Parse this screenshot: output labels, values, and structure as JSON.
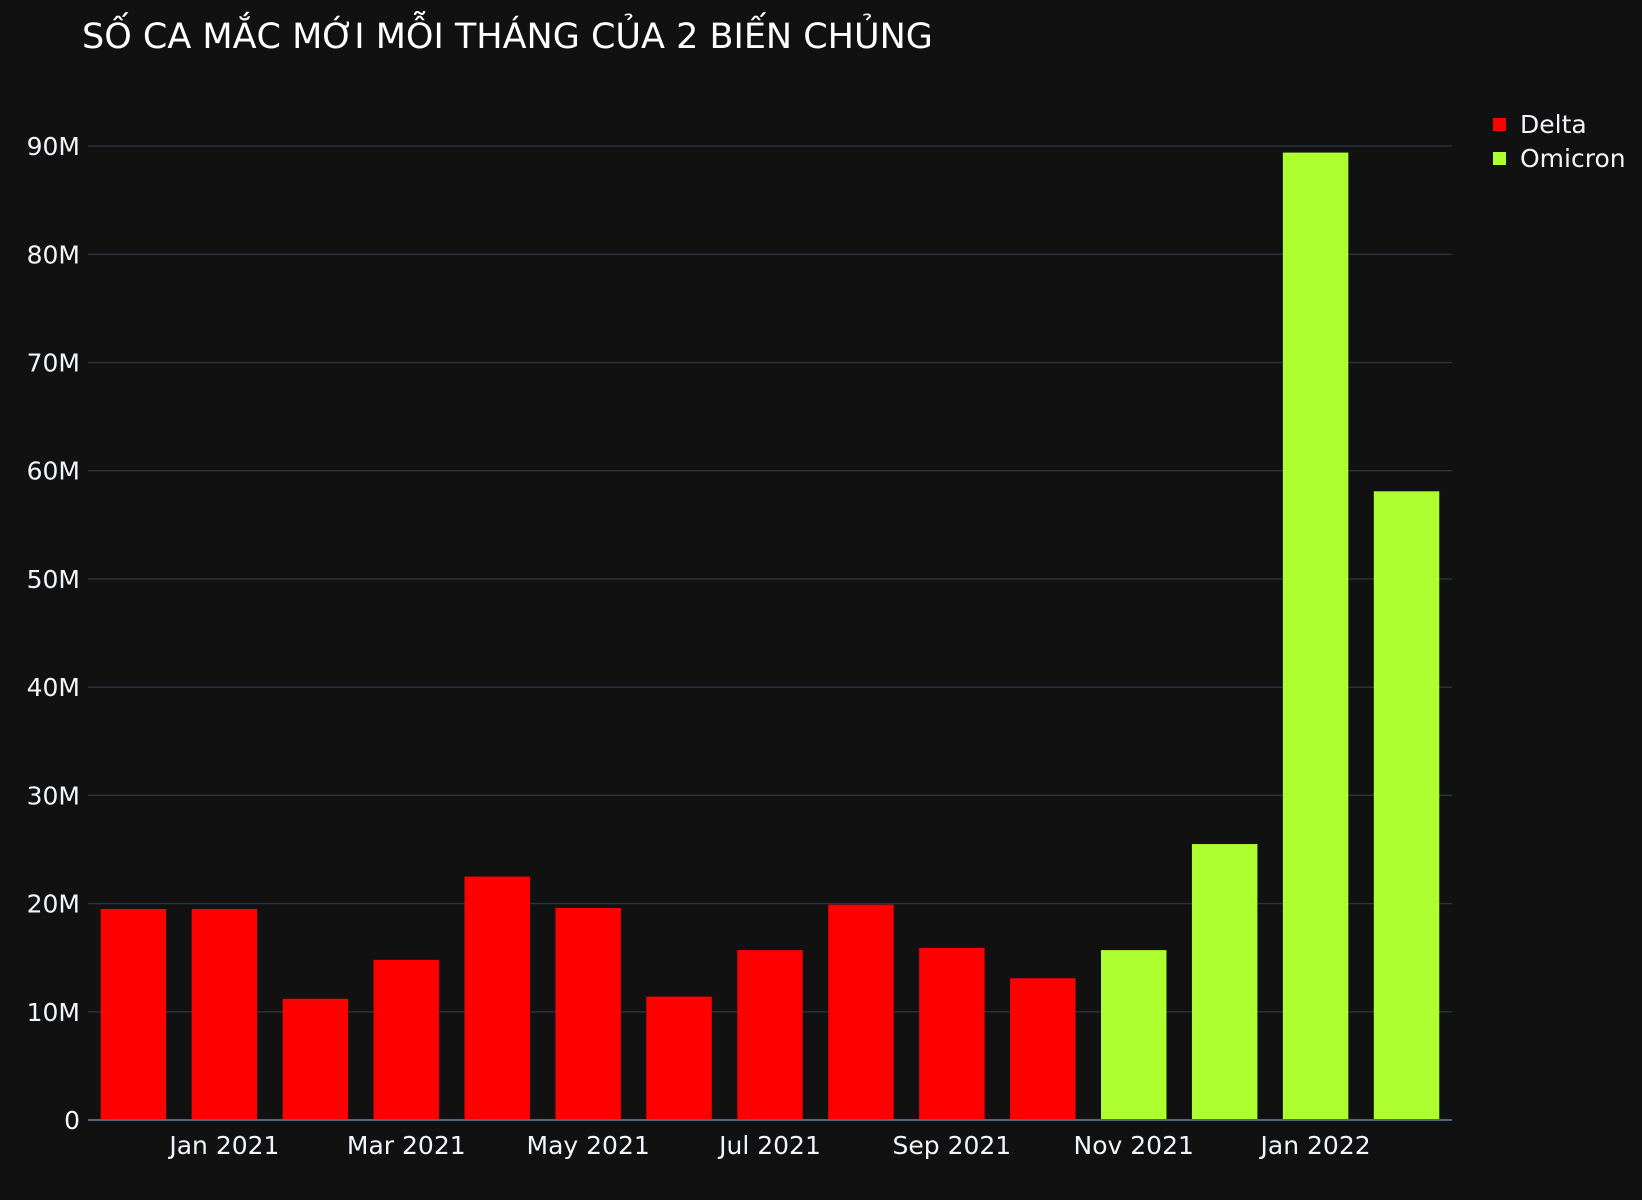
{
  "chart_data": {
    "type": "bar",
    "title": "SỐ CA MẮC MỚI MỖI THÁNG CỦA 2 BIẾN CHỦNG",
    "xlabel": "",
    "ylabel": "",
    "ylim": [
      0,
      95000000
    ],
    "y_ticks": [
      0,
      10000000,
      20000000,
      30000000,
      40000000,
      50000000,
      60000000,
      70000000,
      80000000,
      90000000
    ],
    "y_tick_labels": [
      "0",
      "10M",
      "20M",
      "30M",
      "40M",
      "50M",
      "60M",
      "70M",
      "80M",
      "90M"
    ],
    "x_tick_labels": [
      "Jan 2021",
      "Mar 2021",
      "May 2021",
      "Jul 2021",
      "Sep 2021",
      "Nov 2021",
      "Jan 2022"
    ],
    "categories": [
      "Dec 2020",
      "Jan 2021",
      "Feb 2021",
      "Mar 2021",
      "Apr 2021",
      "May 2021",
      "Jun 2021",
      "Jul 2021",
      "Aug 2021",
      "Sep 2021",
      "Oct 2021",
      "Nov 2021",
      "Dec 2021",
      "Jan 2022",
      "Feb 2022"
    ],
    "grid": true,
    "legend_position": "top-right",
    "series": [
      {
        "name": "Delta",
        "color": "#ff0000",
        "x": [
          "Dec 2020",
          "Jan 2021",
          "Feb 2021",
          "Mar 2021",
          "Apr 2021",
          "May 2021",
          "Jun 2021",
          "Jul 2021",
          "Aug 2021",
          "Sep 2021",
          "Oct 2021"
        ],
        "values": [
          19500000,
          19500000,
          11200000,
          14800000,
          22500000,
          19600000,
          11400000,
          15700000,
          19900000,
          15900000,
          13100000
        ]
      },
      {
        "name": "Omicron",
        "color": "#adff2f",
        "x": [
          "Nov 2021",
          "Dec 2021",
          "Jan 2022",
          "Feb 2022"
        ],
        "values": [
          15700000,
          25500000,
          89400000,
          58100000
        ]
      }
    ]
  }
}
